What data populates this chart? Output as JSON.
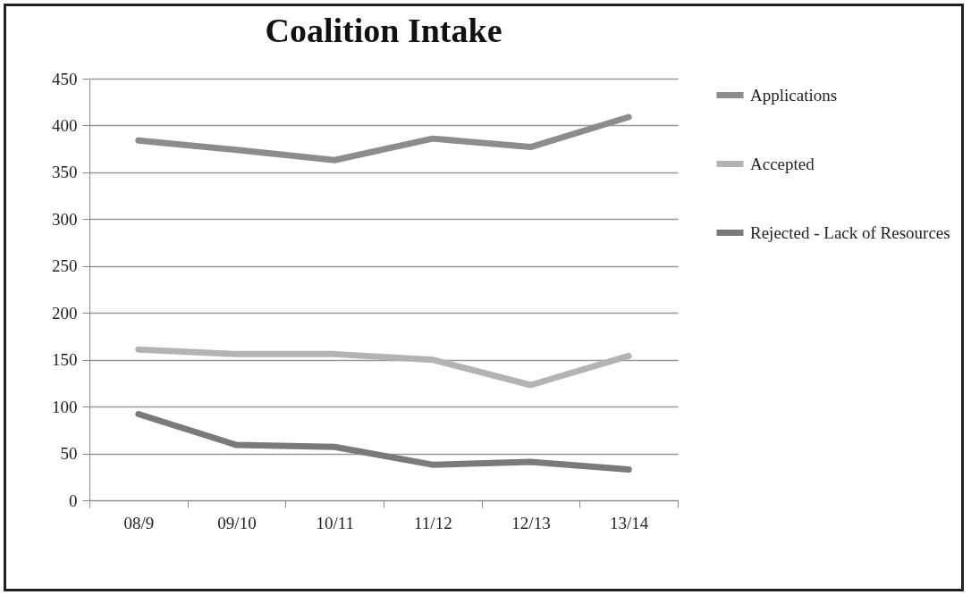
{
  "chart_data": {
    "type": "line",
    "title": "Coalition Intake",
    "categories": [
      "08/9",
      "09/10",
      "10/11",
      "11/12",
      "12/13",
      "13/14"
    ],
    "series": [
      {
        "name": "Applications",
        "color": "#8c8c8c",
        "values": [
          384,
          374,
          363,
          386,
          377,
          409
        ]
      },
      {
        "name": "Accepted",
        "color": "#b3b3b3",
        "values": [
          161,
          156,
          156,
          150,
          123,
          154
        ]
      },
      {
        "name": "Rejected - Lack of Resources",
        "color": "#7a7a7a",
        "values": [
          92,
          59,
          57,
          38,
          41,
          33
        ]
      }
    ],
    "ylim": [
      0,
      450
    ],
    "yticks": [
      0,
      50,
      100,
      150,
      200,
      250,
      300,
      350,
      400,
      450
    ],
    "grid": "y",
    "legend": "right",
    "marker": "none",
    "line_style": "solid"
  }
}
